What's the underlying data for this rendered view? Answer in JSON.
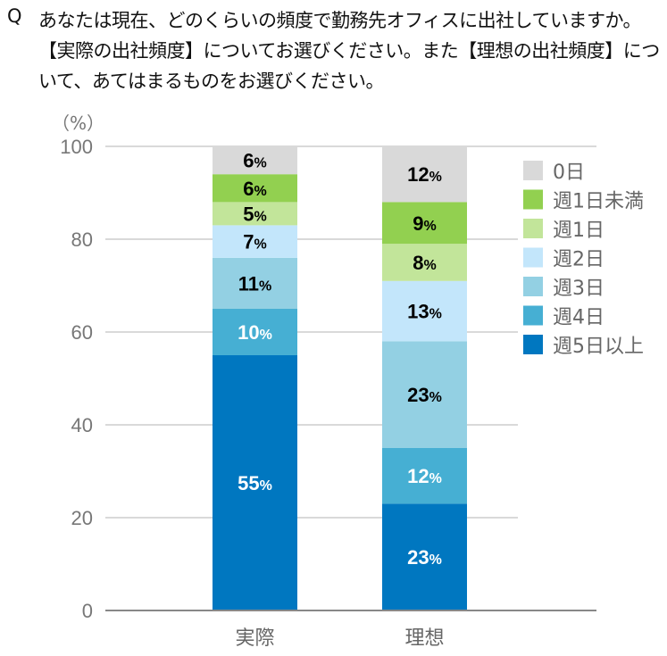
{
  "question": {
    "marker": "Q",
    "text": "あなたは現在、どのくらいの頻度で勤務先オフィスに出社していますか。【実際の出社頻度】についてお選びください。また【理想の出社頻度】について、あてはまるものをお選びください。"
  },
  "chart_data": {
    "type": "bar",
    "stacked": true,
    "unit_label": "（%）",
    "categories": [
      "実際",
      "理想"
    ],
    "ylim": [
      0,
      100
    ],
    "yticks": [
      0,
      20,
      40,
      60,
      80,
      100
    ],
    "grid": true,
    "legend_position": "right",
    "series": [
      {
        "name": "週5日以上",
        "values": [
          55,
          23
        ],
        "color": "#0077c0",
        "label_color": "#ffffff"
      },
      {
        "name": "週4日",
        "values": [
          10,
          12
        ],
        "color": "#46afd3",
        "label_color": "#ffffff"
      },
      {
        "name": "週3日",
        "values": [
          11,
          23
        ],
        "color": "#93d0e3",
        "label_color": "#000000"
      },
      {
        "name": "週2日",
        "values": [
          7,
          13
        ],
        "color": "#c3e6fb",
        "label_color": "#000000"
      },
      {
        "name": "週1日",
        "values": [
          5,
          8
        ],
        "color": "#c2e59a",
        "label_color": "#000000"
      },
      {
        "name": "週1日未満",
        "values": [
          6,
          9
        ],
        "color": "#92d050",
        "label_color": "#000000"
      },
      {
        "name": "0日",
        "values": [
          6,
          12
        ],
        "color": "#d9d9d9",
        "label_color": "#000000"
      }
    ]
  }
}
